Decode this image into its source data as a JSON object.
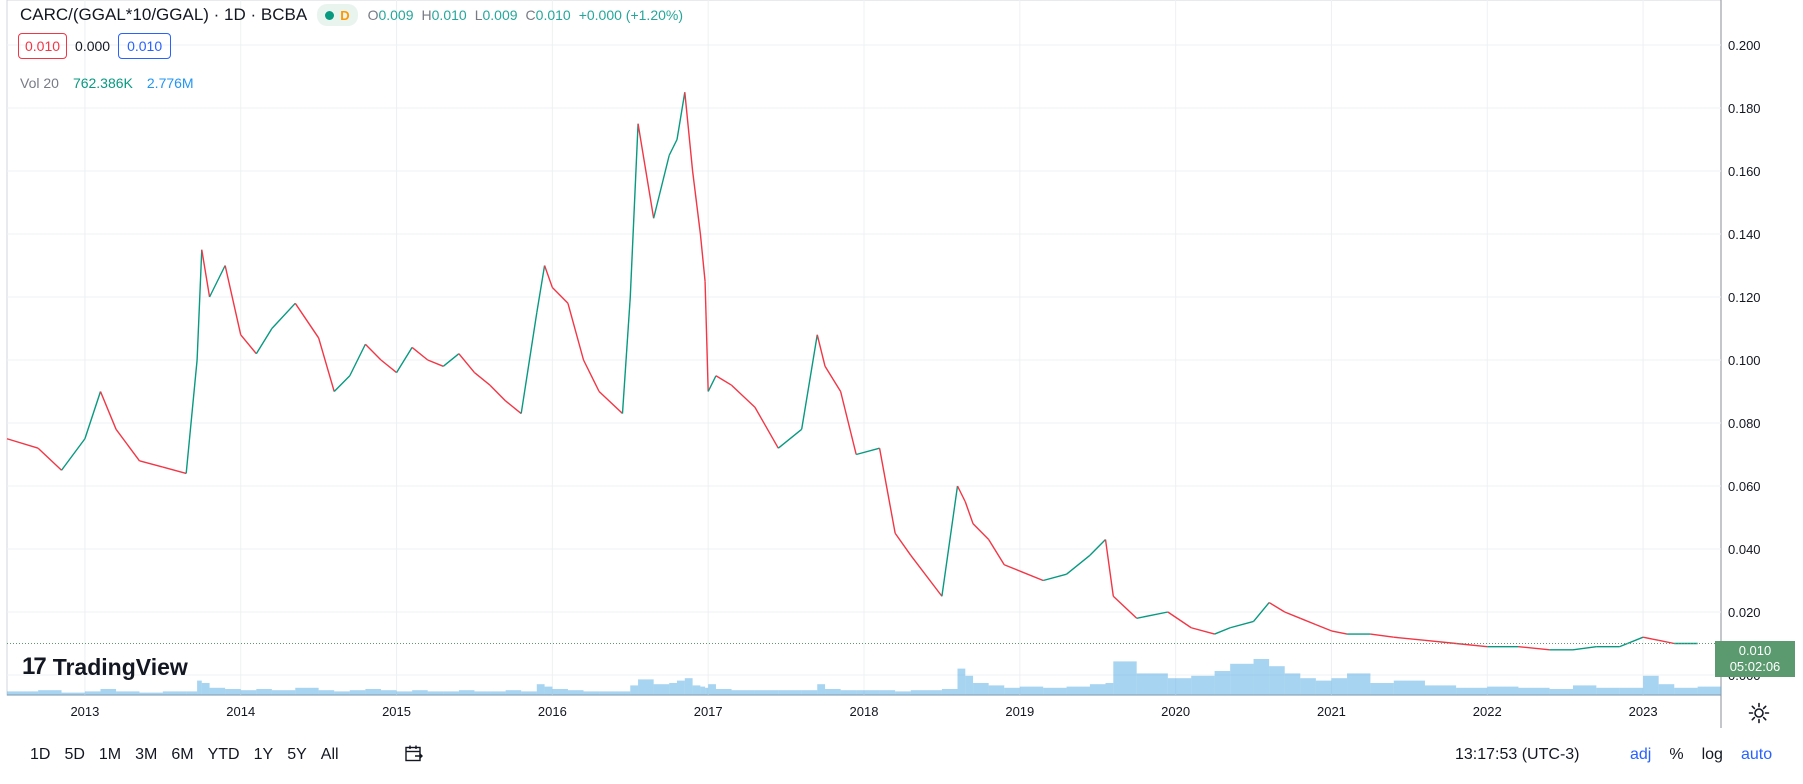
{
  "legend": {
    "title": "CARC/(GGAL*10/GGAL) · 1D · BCBA",
    "interval_badge": "D",
    "open_label": "O",
    "open": "0.009",
    "high_label": "H",
    "high": "0.010",
    "low_label": "L",
    "low": "0.009",
    "close_label": "C",
    "close": "0.010",
    "change": "+0.000 (+1.20%)",
    "bid": "0.010",
    "spread": "0.000",
    "ask": "0.010",
    "vol_label": "Vol 20",
    "vol_value": "762.386K",
    "vol_ma": "2.776M"
  },
  "logo": {
    "mark": "17",
    "text": "TradingView"
  },
  "price_tag": {
    "price": "0.010",
    "countdown": "05:02:06"
  },
  "bottom": {
    "ranges": [
      "1D",
      "5D",
      "1M",
      "3M",
      "6M",
      "YTD",
      "1Y",
      "5Y",
      "All"
    ],
    "clock": "13:17:53 (UTC-3)",
    "adj": "adj",
    "percent": "%",
    "log": "log",
    "auto": "auto"
  },
  "colors": {
    "up": "#089981",
    "down": "#f23645",
    "volume": "#5fb0e4",
    "grid": "#eef0f3",
    "last": "#5a9a6e"
  },
  "chart_data": {
    "type": "line",
    "series": [
      {
        "name": "CARC/(GGAL*10/GGAL)",
        "x": [
          2012.5,
          2012.7,
          2012.85,
          2013.0,
          2013.1,
          2013.2,
          2013.35,
          2013.5,
          2013.65,
          2013.72,
          2013.75,
          2013.8,
          2013.9,
          2014.0,
          2014.1,
          2014.2,
          2014.35,
          2014.5,
          2014.6,
          2014.7,
          2014.8,
          2014.9,
          2015.0,
          2015.1,
          2015.2,
          2015.3,
          2015.4,
          2015.5,
          2015.6,
          2015.7,
          2015.8,
          2015.9,
          2015.95,
          2016.0,
          2016.1,
          2016.2,
          2016.3,
          2016.45,
          2016.5,
          2016.55,
          2016.65,
          2016.75,
          2016.8,
          2016.85,
          2016.9,
          2016.95,
          2016.98,
          2017.0,
          2017.05,
          2017.15,
          2017.3,
          2017.45,
          2017.6,
          2017.7,
          2017.75,
          2017.85,
          2017.95,
          2018.1,
          2018.2,
          2018.3,
          2018.5,
          2018.6,
          2018.65,
          2018.7,
          2018.8,
          2018.9,
          2019.0,
          2019.15,
          2019.3,
          2019.45,
          2019.55,
          2019.6,
          2019.75,
          2019.95,
          2020.1,
          2020.25,
          2020.35,
          2020.5,
          2020.6,
          2020.7,
          2020.8,
          2020.9,
          2021.0,
          2021.1,
          2021.25,
          2021.4,
          2021.6,
          2021.8,
          2022.0,
          2022.2,
          2022.4,
          2022.55,
          2022.7,
          2022.85,
          2023.0,
          2023.1,
          2023.2,
          2023.35
        ],
        "y": [
          0.075,
          0.072,
          0.065,
          0.075,
          0.09,
          0.078,
          0.068,
          0.066,
          0.064,
          0.1,
          0.135,
          0.12,
          0.13,
          0.108,
          0.102,
          0.11,
          0.118,
          0.107,
          0.09,
          0.095,
          0.105,
          0.1,
          0.096,
          0.104,
          0.1,
          0.098,
          0.102,
          0.096,
          0.092,
          0.087,
          0.083,
          0.115,
          0.13,
          0.123,
          0.118,
          0.1,
          0.09,
          0.083,
          0.12,
          0.175,
          0.145,
          0.165,
          0.17,
          0.185,
          0.16,
          0.14,
          0.125,
          0.09,
          0.095,
          0.092,
          0.085,
          0.072,
          0.078,
          0.108,
          0.098,
          0.09,
          0.07,
          0.072,
          0.045,
          0.038,
          0.025,
          0.06,
          0.055,
          0.048,
          0.043,
          0.035,
          0.033,
          0.03,
          0.032,
          0.038,
          0.043,
          0.025,
          0.018,
          0.02,
          0.015,
          0.013,
          0.015,
          0.017,
          0.023,
          0.02,
          0.018,
          0.016,
          0.014,
          0.013,
          0.013,
          0.012,
          0.011,
          0.01,
          0.009,
          0.009,
          0.008,
          0.008,
          0.009,
          0.009,
          0.012,
          0.011,
          0.01,
          0.01
        ]
      }
    ],
    "volume": [
      0.3,
      0.4,
      0.2,
      0.3,
      0.5,
      0.3,
      0.2,
      0.3,
      0.3,
      1.2,
      1.0,
      0.6,
      0.5,
      0.4,
      0.5,
      0.4,
      0.6,
      0.4,
      0.3,
      0.4,
      0.5,
      0.4,
      0.3,
      0.4,
      0.3,
      0.3,
      0.4,
      0.3,
      0.3,
      0.4,
      0.3,
      0.9,
      0.7,
      0.5,
      0.4,
      0.3,
      0.3,
      0.3,
      0.8,
      1.3,
      0.9,
      1.0,
      1.2,
      1.4,
      0.8,
      0.7,
      0.6,
      0.9,
      0.5,
      0.4,
      0.4,
      0.4,
      0.4,
      0.9,
      0.5,
      0.4,
      0.4,
      0.4,
      0.3,
      0.4,
      0.5,
      2.2,
      1.6,
      1.0,
      0.8,
      0.6,
      0.7,
      0.6,
      0.7,
      0.9,
      1.0,
      2.8,
      1.8,
      1.4,
      1.6,
      2.0,
      2.6,
      3.0,
      2.4,
      1.8,
      1.4,
      1.2,
      1.4,
      1.8,
      1.0,
      1.2,
      0.8,
      0.6,
      0.7,
      0.6,
      0.5,
      0.8,
      0.6,
      0.6,
      1.6,
      0.9,
      0.6,
      0.7
    ],
    "xticks": [
      "2013",
      "2014",
      "2015",
      "2016",
      "2017",
      "2018",
      "2019",
      "2020",
      "2021",
      "2022",
      "2023"
    ],
    "yticks": [
      "0.000",
      "0.020",
      "0.040",
      "0.060",
      "0.080",
      "0.100",
      "0.120",
      "0.140",
      "0.160",
      "0.180",
      "0.200"
    ],
    "xlim": [
      2012.5,
      2023.5
    ],
    "ylim": [
      0.0,
      0.21
    ],
    "last_value": 0.01,
    "grid": true,
    "xlabel": "",
    "ylabel": ""
  }
}
